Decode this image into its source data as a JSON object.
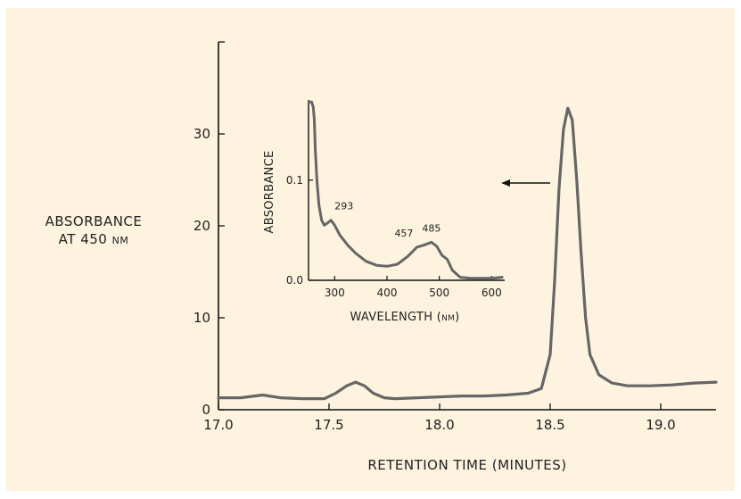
{
  "chart_data": [
    {
      "type": "line",
      "xlabel": "RETENTION TIME (MINUTES)",
      "ylabel_line1": "ABSORBANCE",
      "ylabel_line2": "AT 450 nm",
      "xlim": [
        17.0,
        19.25
      ],
      "ylim": [
        0,
        40
      ],
      "x_ticks": [
        17.0,
        17.5,
        18.0,
        18.5,
        19.0
      ],
      "x_tick_labels": [
        "17.0",
        "17.5",
        "18.0",
        "18.5",
        "19.0"
      ],
      "y_ticks": [
        0,
        10,
        20,
        30
      ],
      "y_tick_labels": [
        "0",
        "10",
        "20",
        "30"
      ],
      "series": [
        {
          "x": [
            17.0,
            17.1,
            17.2,
            17.28,
            17.38,
            17.48,
            17.53,
            17.58,
            17.62,
            17.66,
            17.7,
            17.75,
            17.8,
            17.9,
            18.0,
            18.1,
            18.2,
            18.3,
            18.4,
            18.46,
            18.5,
            18.52,
            18.54,
            18.56,
            18.58,
            18.6,
            18.62,
            18.64,
            18.66,
            18.68,
            18.72,
            18.78,
            18.85,
            18.95,
            19.05,
            19.15,
            19.25
          ],
          "y": [
            1.3,
            1.3,
            1.6,
            1.3,
            1.2,
            1.2,
            1.8,
            2.6,
            3.0,
            2.6,
            1.8,
            1.3,
            1.2,
            1.3,
            1.4,
            1.5,
            1.5,
            1.6,
            1.8,
            2.3,
            6.0,
            14.0,
            24.0,
            30.5,
            32.8,
            31.5,
            25.0,
            17.0,
            10.0,
            6.0,
            3.8,
            2.9,
            2.6,
            2.6,
            2.7,
            2.9,
            3.0
          ]
        }
      ],
      "annotations": [
        {
          "type": "arrow",
          "direction": "left"
        }
      ]
    },
    {
      "type": "line",
      "inset": true,
      "xlabel": "WAVELENGTH (nm)",
      "ylabel": "ABSORBANCE",
      "xlim": [
        250,
        625
      ],
      "ylim": [
        0.0,
        0.18
      ],
      "x_ticks": [
        300,
        400,
        500,
        600
      ],
      "x_tick_labels": [
        "300",
        "400",
        "500",
        "600"
      ],
      "y_ticks": [
        0.0,
        0.1
      ],
      "y_tick_labels": [
        "0.0",
        "0.1"
      ],
      "series": [
        {
          "x": [
            252,
            256,
            259,
            261,
            263,
            266,
            270,
            275,
            280,
            286,
            293,
            300,
            310,
            325,
            340,
            360,
            380,
            400,
            420,
            440,
            457,
            470,
            485,
            495,
            505,
            515,
            525,
            540,
            560,
            580,
            600,
            620
          ],
          "y": [
            0.178,
            0.178,
            0.173,
            0.16,
            0.13,
            0.1,
            0.075,
            0.06,
            0.055,
            0.057,
            0.06,
            0.055,
            0.045,
            0.035,
            0.027,
            0.019,
            0.015,
            0.014,
            0.016,
            0.024,
            0.033,
            0.035,
            0.038,
            0.034,
            0.025,
            0.021,
            0.01,
            0.003,
            0.002,
            0.002,
            0.002,
            0.003
          ]
        }
      ],
      "peak_labels": [
        {
          "x": 293,
          "y": 0.06,
          "text": "293"
        },
        {
          "x": 457,
          "y": 0.033,
          "text": "457"
        },
        {
          "x": 485,
          "y": 0.038,
          "text": "485"
        }
      ]
    }
  ]
}
